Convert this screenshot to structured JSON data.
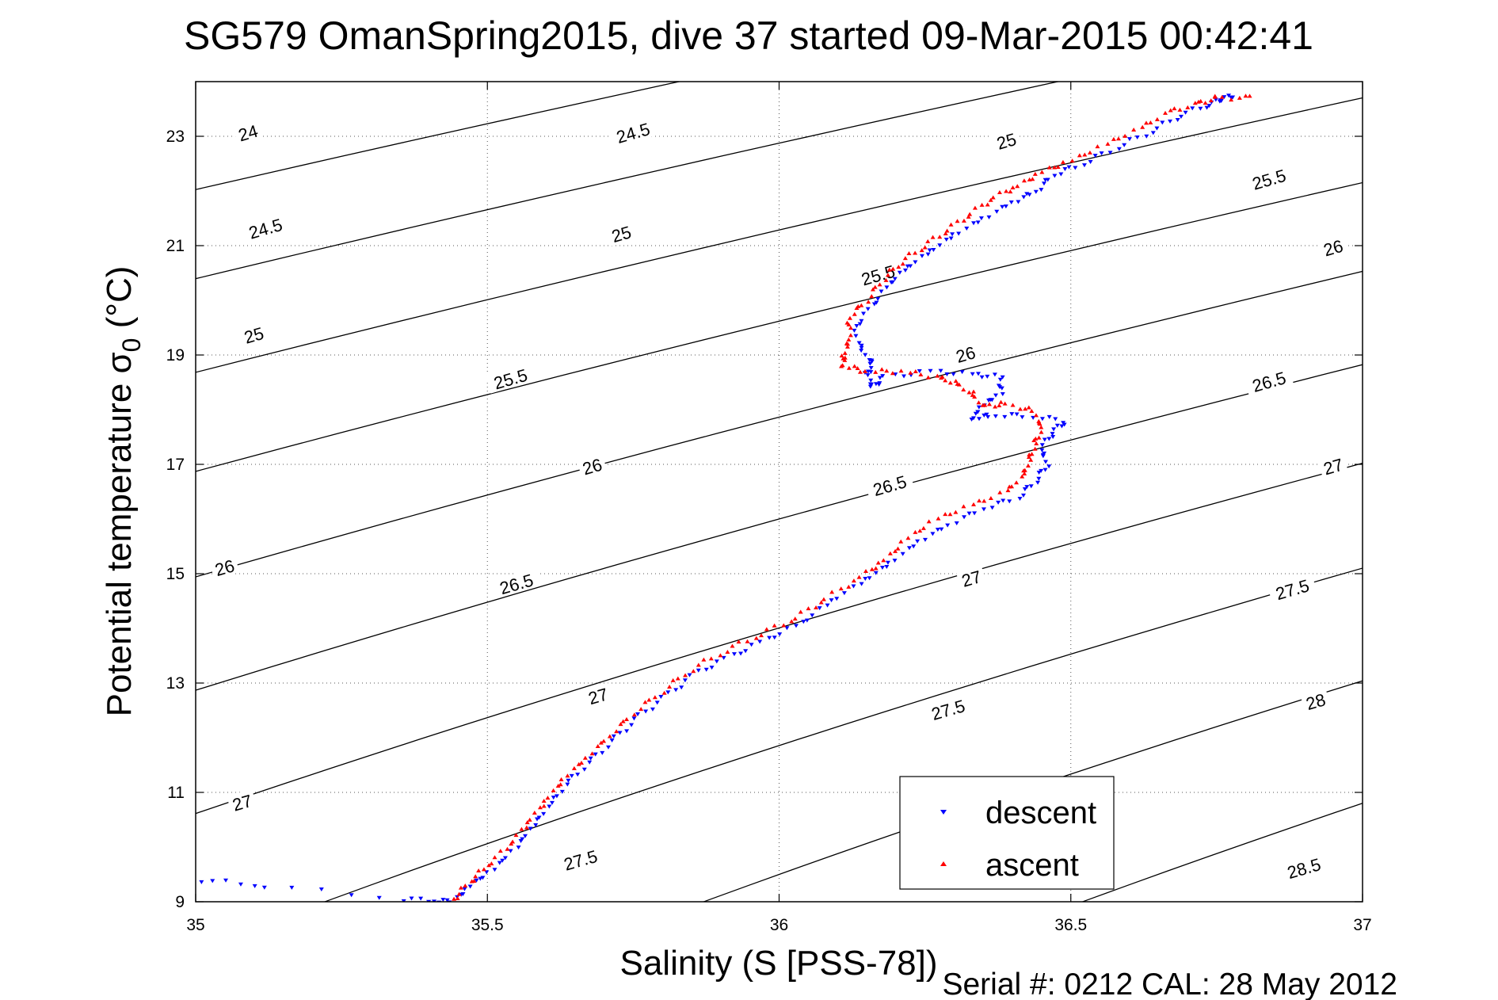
{
  "chart_data": {
    "type": "scatter",
    "title": "SG579 OmanSpring2015, dive 37 started 09-Mar-2015 00:42:41",
    "xlabel": "Salinity (S [PSS-78])",
    "ylabel_main": "Potential temperature σ",
    "ylabel_sub": "0",
    "ylabel_unit": " (°C)",
    "xlim": [
      35,
      37
    ],
    "ylim": [
      9,
      24
    ],
    "x_ticks": [
      35,
      35.5,
      36,
      36.5,
      37
    ],
    "x_tick_labels": [
      "35",
      "35.5",
      "36",
      "36.5",
      "37"
    ],
    "y_ticks": [
      9,
      11,
      13,
      15,
      17,
      19,
      21,
      23
    ],
    "y_tick_labels": [
      "9",
      "11",
      "13",
      "15",
      "17",
      "19",
      "21",
      "23"
    ],
    "grid": true,
    "legend_position": "bottom-right",
    "footer": "Serial #: 0212  CAL: 28 May 2012",
    "isopycnals": {
      "levels": [
        24,
        24.5,
        25,
        25.5,
        26,
        26.5,
        27,
        27.5,
        28,
        28.5
      ],
      "labels": [
        {
          "text": "24",
          "x": 35.09,
          "y": 23.05
        },
        {
          "text": "24.5",
          "x": 35.12,
          "y": 21.3
        },
        {
          "text": "24.5",
          "x": 35.75,
          "y": 23.05
        },
        {
          "text": "25",
          "x": 35.1,
          "y": 19.35
        },
        {
          "text": "25",
          "x": 35.73,
          "y": 21.2
        },
        {
          "text": "25",
          "x": 36.39,
          "y": 22.9
        },
        {
          "text": "25.5",
          "x": 35.54,
          "y": 18.55
        },
        {
          "text": "25.5",
          "x": 36.17,
          "y": 20.45
        },
        {
          "text": "25.5",
          "x": 36.84,
          "y": 22.2
        },
        {
          "text": "26",
          "x": 35.05,
          "y": 15.1
        },
        {
          "text": "26",
          "x": 35.68,
          "y": 16.95
        },
        {
          "text": "26",
          "x": 36.32,
          "y": 19.0
        },
        {
          "text": "26",
          "x": 36.95,
          "y": 20.95
        },
        {
          "text": "26.5",
          "x": 35.55,
          "y": 14.8
        },
        {
          "text": "26.5",
          "x": 36.19,
          "y": 16.6
        },
        {
          "text": "26.5",
          "x": 36.84,
          "y": 18.5
        },
        {
          "text": "27",
          "x": 35.08,
          "y": 10.8
        },
        {
          "text": "27",
          "x": 35.69,
          "y": 12.75
        },
        {
          "text": "27",
          "x": 36.33,
          "y": 14.9
        },
        {
          "text": "27",
          "x": 36.95,
          "y": 16.95
        },
        {
          "text": "27.5",
          "x": 35.66,
          "y": 9.75
        },
        {
          "text": "27.5",
          "x": 36.29,
          "y": 12.5
        },
        {
          "text": "27.5",
          "x": 36.88,
          "y": 14.7
        },
        {
          "text": "28",
          "x": 36.92,
          "y": 12.65
        },
        {
          "text": "28.5",
          "x": 36.9,
          "y": 9.6
        }
      ]
    },
    "series": [
      {
        "name": "descent",
        "color": "#0000ff",
        "marker": "triangle-down",
        "points": [
          [
            35.01,
            9.4
          ],
          [
            35.12,
            9.3
          ],
          [
            35.36,
            9.05
          ],
          [
            35.42,
            9.02
          ],
          [
            35.44,
            9.0
          ],
          [
            35.47,
            9.3
          ],
          [
            35.51,
            9.6
          ],
          [
            35.55,
            10.0
          ],
          [
            35.58,
            10.4
          ],
          [
            35.61,
            10.8
          ],
          [
            35.64,
            11.2
          ],
          [
            35.68,
            11.6
          ],
          [
            35.72,
            12.0
          ],
          [
            35.76,
            12.4
          ],
          [
            35.81,
            12.8
          ],
          [
            35.86,
            13.2
          ],
          [
            35.92,
            13.5
          ],
          [
            35.98,
            13.8
          ],
          [
            36.04,
            14.1
          ],
          [
            36.09,
            14.5
          ],
          [
            36.15,
            14.9
          ],
          [
            36.19,
            15.2
          ],
          [
            36.24,
            15.6
          ],
          [
            36.29,
            15.9
          ],
          [
            36.35,
            16.2
          ],
          [
            36.41,
            16.4
          ],
          [
            36.44,
            16.7
          ],
          [
            36.46,
            17.0
          ],
          [
            36.45,
            17.3
          ],
          [
            36.47,
            17.6
          ],
          [
            36.49,
            17.8
          ],
          [
            36.42,
            17.9
          ],
          [
            36.36,
            17.9
          ],
          [
            36.33,
            17.85
          ],
          [
            36.35,
            18.1
          ],
          [
            36.38,
            18.3
          ],
          [
            36.38,
            18.6
          ],
          [
            36.33,
            18.65
          ],
          [
            36.26,
            18.7
          ],
          [
            36.18,
            18.6
          ],
          [
            36.16,
            18.4
          ],
          [
            36.15,
            18.65
          ],
          [
            36.16,
            18.85
          ],
          [
            36.14,
            19.1
          ],
          [
            36.13,
            19.5
          ],
          [
            36.16,
            19.9
          ],
          [
            36.19,
            20.3
          ],
          [
            36.22,
            20.6
          ],
          [
            36.26,
            20.9
          ],
          [
            36.3,
            21.2
          ],
          [
            36.35,
            21.5
          ],
          [
            36.4,
            21.8
          ],
          [
            36.44,
            22.0
          ],
          [
            36.47,
            22.3
          ],
          [
            36.52,
            22.5
          ],
          [
            36.58,
            22.8
          ],
          [
            36.64,
            23.1
          ],
          [
            36.69,
            23.4
          ],
          [
            36.74,
            23.6
          ],
          [
            36.76,
            23.7
          ],
          [
            36.78,
            23.75
          ]
        ]
      },
      {
        "name": "ascent",
        "color": "#ff0000",
        "marker": "triangle-up",
        "points": [
          [
            35.44,
            9.02
          ],
          [
            35.47,
            9.35
          ],
          [
            35.5,
            9.65
          ],
          [
            35.54,
            10.05
          ],
          [
            35.57,
            10.45
          ],
          [
            35.6,
            10.85
          ],
          [
            35.63,
            11.25
          ],
          [
            35.67,
            11.65
          ],
          [
            35.71,
            12.05
          ],
          [
            35.75,
            12.45
          ],
          [
            35.8,
            12.85
          ],
          [
            35.85,
            13.25
          ],
          [
            35.91,
            13.6
          ],
          [
            35.97,
            13.9
          ],
          [
            36.03,
            14.2
          ],
          [
            36.08,
            14.55
          ],
          [
            36.14,
            14.95
          ],
          [
            36.18,
            15.25
          ],
          [
            36.22,
            15.65
          ],
          [
            36.27,
            16.0
          ],
          [
            36.33,
            16.25
          ],
          [
            36.39,
            16.5
          ],
          [
            36.42,
            16.8
          ],
          [
            36.43,
            17.1
          ],
          [
            36.44,
            17.4
          ],
          [
            36.45,
            17.7
          ],
          [
            36.43,
            18.0
          ],
          [
            36.38,
            18.1
          ],
          [
            36.35,
            18.05
          ],
          [
            36.33,
            18.3
          ],
          [
            36.3,
            18.5
          ],
          [
            36.27,
            18.6
          ],
          [
            36.21,
            18.7
          ],
          [
            36.15,
            18.7
          ],
          [
            36.11,
            18.8
          ],
          [
            36.11,
            19.0
          ],
          [
            36.12,
            19.3
          ],
          [
            36.12,
            19.7
          ],
          [
            36.15,
            20.0
          ],
          [
            36.18,
            20.4
          ],
          [
            36.21,
            20.7
          ],
          [
            36.25,
            21.0
          ],
          [
            36.29,
            21.3
          ],
          [
            36.33,
            21.6
          ],
          [
            36.37,
            21.9
          ],
          [
            36.41,
            22.1
          ],
          [
            36.45,
            22.35
          ],
          [
            36.5,
            22.55
          ],
          [
            36.56,
            22.85
          ],
          [
            36.62,
            23.15
          ],
          [
            36.67,
            23.45
          ],
          [
            36.72,
            23.6
          ],
          [
            36.75,
            23.7
          ],
          [
            36.81,
            23.7
          ]
        ]
      }
    ]
  }
}
